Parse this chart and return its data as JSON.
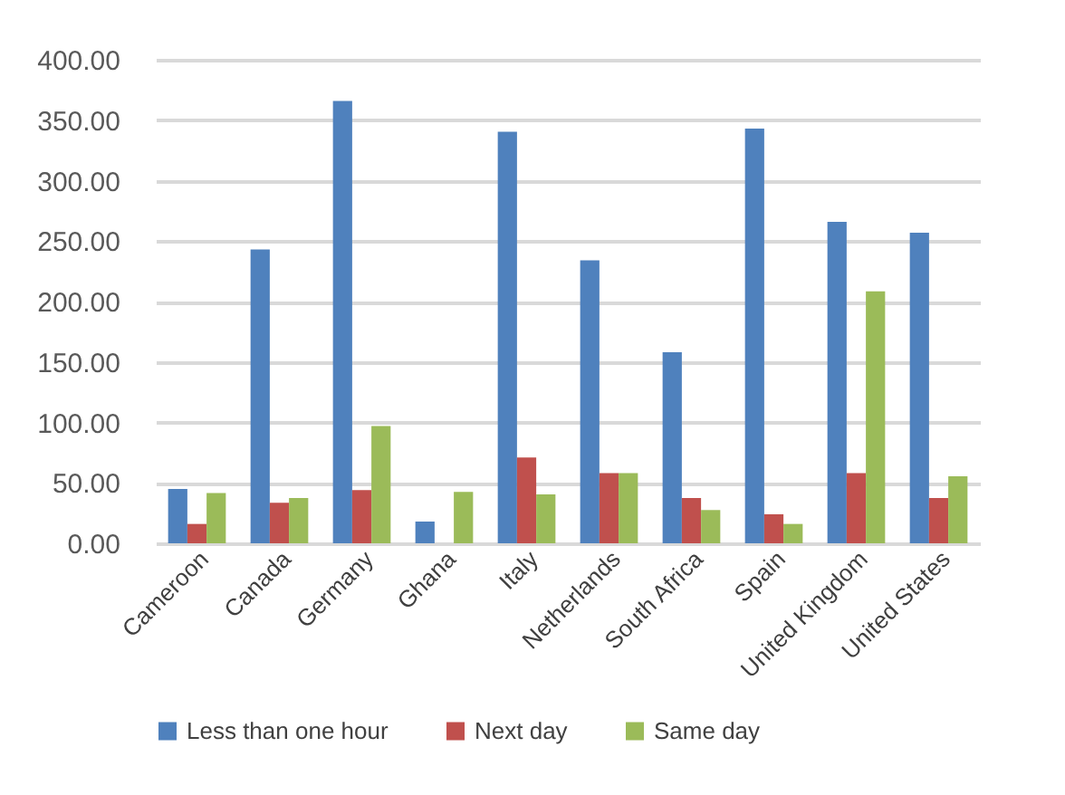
{
  "chart_data": {
    "type": "bar",
    "categories": [
      "Cameroon",
      "Canada",
      "Germany",
      "Ghana",
      "Italy",
      "Netherlands",
      "South Africa",
      "Spain",
      "United Kingdom",
      "United States"
    ],
    "series": [
      {
        "name": "Less than one hour",
        "color": "#4f81bd",
        "values": [
          45,
          243,
          366,
          18,
          340.5,
          234,
          158,
          343,
          266,
          257
        ]
      },
      {
        "name": "Next day",
        "color": "#c0504d",
        "values": [
          16,
          33.5,
          44,
          0,
          71,
          58,
          37.5,
          24,
          58,
          37.5
        ]
      },
      {
        "name": "Same day",
        "color": "#9bbb59",
        "values": [
          41.5,
          37.5,
          97,
          42.5,
          40.5,
          58,
          27.5,
          16,
          208.5,
          55.5
        ]
      }
    ],
    "ylim": [
      0,
      400
    ],
    "yticks": [
      {
        "value": 0,
        "label": "0.00"
      },
      {
        "value": 50,
        "label": "50.00"
      },
      {
        "value": 100,
        "label": "100.00"
      },
      {
        "value": 150,
        "label": "150.00"
      },
      {
        "value": 200,
        "label": "200.00"
      },
      {
        "value": 250,
        "label": "250.00"
      },
      {
        "value": 300,
        "label": "300.00"
      },
      {
        "value": 350,
        "label": "350.00"
      },
      {
        "value": 400,
        "label": "400.00"
      }
    ],
    "grid": "y",
    "legend": "bottom"
  }
}
